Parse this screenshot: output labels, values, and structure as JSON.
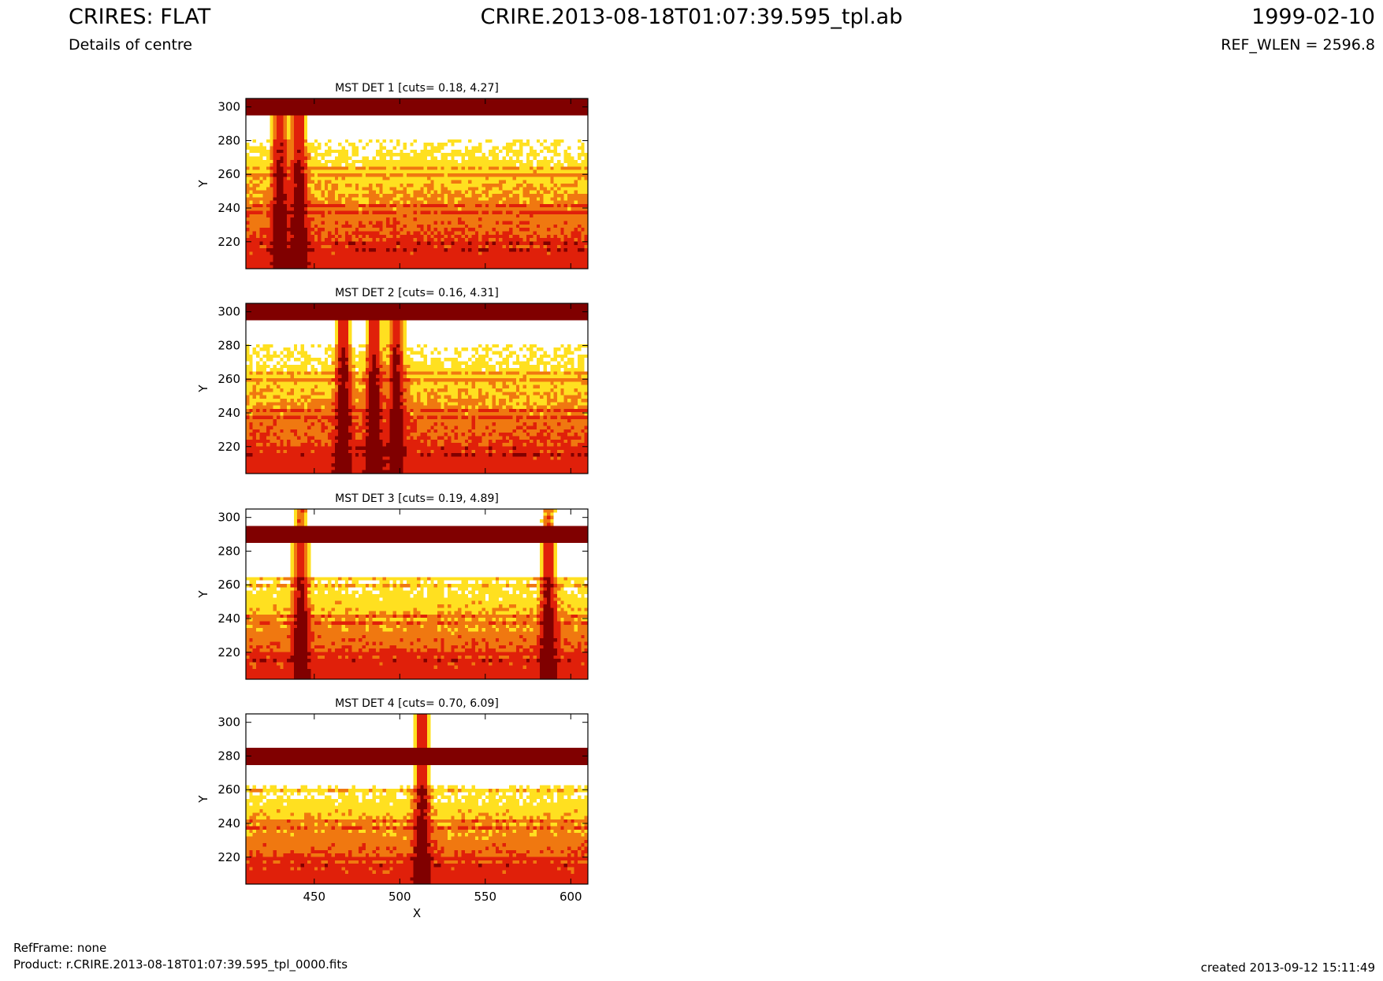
{
  "header": {
    "title_left": "CRIRES: FLAT",
    "title_center": "CRIRE.2013-08-18T01:07:39.595_tpl.ab",
    "title_right": "1999-02-10",
    "subtitle_left": "Details of centre",
    "subtitle_right": "REF_WLEN = 2596.8"
  },
  "footer": {
    "ref_frame": "RefFrame: none",
    "product": "Product: r.CRIRE.2013-08-18T01:07:39.595_tpl_0000.fits",
    "created": "created 2013-09-12 15:11:49"
  },
  "colors": {
    "dark_red": "#800000",
    "red": "#e0200a",
    "orange": "#f07810",
    "yellow": "#ffe020",
    "white": "#ffffff",
    "near_black": "#300000"
  },
  "chart_data": [
    {
      "type": "heatmap",
      "title": "MST DET 1 [cuts= 0.18, 4.27]",
      "xlabel": "",
      "ylabel": "Y",
      "xlim": [
        410,
        610
      ],
      "ylim": [
        204,
        305
      ],
      "x_ticks": [
        450,
        500,
        550,
        600
      ],
      "y_ticks": [
        220,
        240,
        260,
        280,
        300
      ],
      "colormap": "hot",
      "cuts": [
        0.18,
        4.27
      ],
      "saturated_band": [
        295,
        305
      ],
      "bright_band": [
        280,
        295
      ],
      "dark_columns": [
        430,
        441
      ]
    },
    {
      "type": "heatmap",
      "title": "MST DET 2 [cuts= 0.16, 4.31]",
      "xlabel": "",
      "ylabel": "Y",
      "xlim": [
        410,
        610
      ],
      "ylim": [
        204,
        305
      ],
      "x_ticks": [
        450,
        500,
        550,
        600
      ],
      "y_ticks": [
        220,
        240,
        260,
        280,
        300
      ],
      "colormap": "hot",
      "cuts": [
        0.16,
        4.31
      ],
      "saturated_band": [
        294,
        305
      ],
      "bright_band": [
        280,
        294
      ],
      "dark_columns": [
        467,
        485,
        498
      ]
    },
    {
      "type": "heatmap",
      "title": "MST DET 3 [cuts= 0.19, 4.89]",
      "xlabel": "",
      "ylabel": "Y",
      "xlim": [
        410,
        610
      ],
      "ylim": [
        204,
        305
      ],
      "x_ticks": [
        450,
        500,
        550,
        600
      ],
      "y_ticks": [
        220,
        240,
        260,
        280,
        300
      ],
      "colormap": "hot",
      "cuts": [
        0.19,
        4.89
      ],
      "saturated_band": [
        284,
        295
      ],
      "bright_band": [
        265,
        284
      ],
      "dark_columns": [
        442,
        587
      ]
    },
    {
      "type": "heatmap",
      "title": "MST DET 4 [cuts= 0.70, 6.09]",
      "xlabel": "X",
      "ylabel": "Y",
      "xlim": [
        410,
        610
      ],
      "ylim": [
        204,
        305
      ],
      "x_ticks": [
        450,
        500,
        550,
        600
      ],
      "y_ticks": [
        220,
        240,
        260,
        280,
        300
      ],
      "colormap": "hot",
      "cuts": [
        0.7,
        6.09
      ],
      "saturated_band": [
        274,
        285
      ],
      "bright_band": [
        263,
        274
      ],
      "top_bright_band": [
        285,
        305
      ],
      "dark_columns": [
        513
      ]
    }
  ]
}
